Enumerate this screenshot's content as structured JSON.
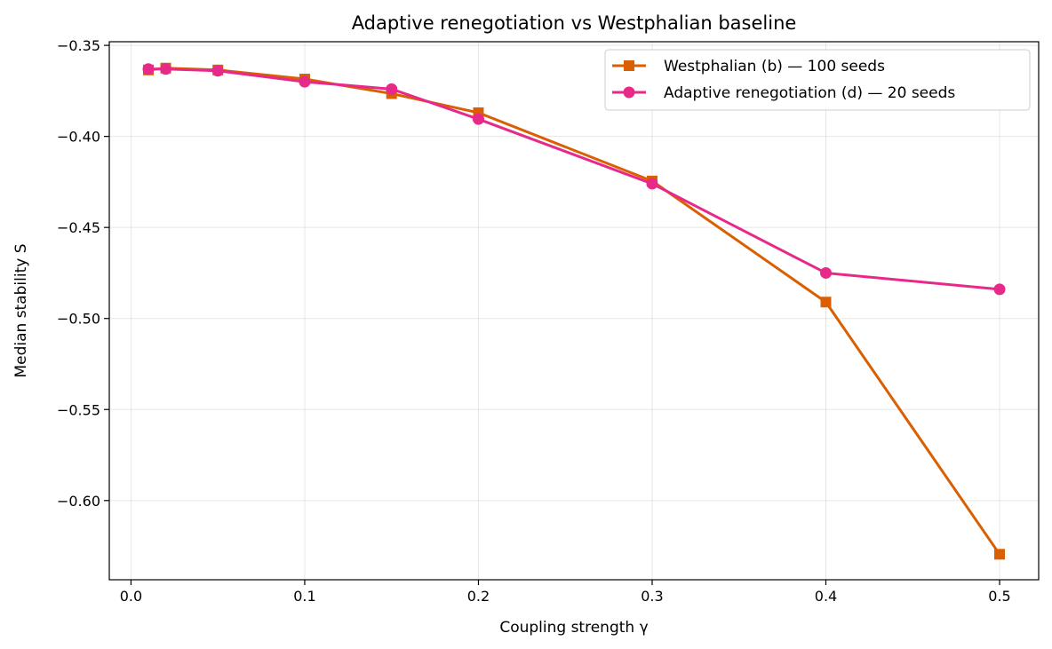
{
  "chart_data": {
    "type": "line",
    "title": "Adaptive renegotiation vs Westphalian baseline",
    "xlabel": "Coupling strength γ",
    "ylabel": "Median stability S",
    "xlim": [
      -0.0125,
      0.5225
    ],
    "ylim": [
      -0.6435,
      -0.348
    ],
    "xticks": [
      0.0,
      0.1,
      0.2,
      0.3,
      0.4,
      0.5
    ],
    "xtick_labels": [
      "0.0",
      "0.1",
      "0.2",
      "0.3",
      "0.4",
      "0.5"
    ],
    "yticks": [
      -0.35,
      -0.4,
      -0.45,
      -0.5,
      -0.55,
      -0.6
    ],
    "ytick_labels": [
      "−0.35",
      "−0.40",
      "−0.45",
      "−0.50",
      "−0.55",
      "−0.60"
    ],
    "grid": true,
    "legend_position": "top-right",
    "series": [
      {
        "name": "Westphalian (b) — 100 seeds",
        "color": "#d95f02",
        "marker": "square",
        "x": [
          0.01,
          0.02,
          0.05,
          0.1,
          0.15,
          0.2,
          0.3,
          0.4,
          0.5
        ],
        "y": [
          -0.3635,
          -0.3625,
          -0.3635,
          -0.3685,
          -0.3765,
          -0.387,
          -0.4245,
          -0.491,
          -0.6295
        ]
      },
      {
        "name": "Adaptive renegotiation (d) — 20 seeds",
        "color": "#e7298a",
        "marker": "circle",
        "x": [
          0.01,
          0.02,
          0.05,
          0.1,
          0.15,
          0.2,
          0.3,
          0.4,
          0.5
        ],
        "y": [
          -0.363,
          -0.363,
          -0.364,
          -0.37,
          -0.374,
          -0.3905,
          -0.426,
          -0.475,
          -0.484
        ]
      }
    ]
  }
}
